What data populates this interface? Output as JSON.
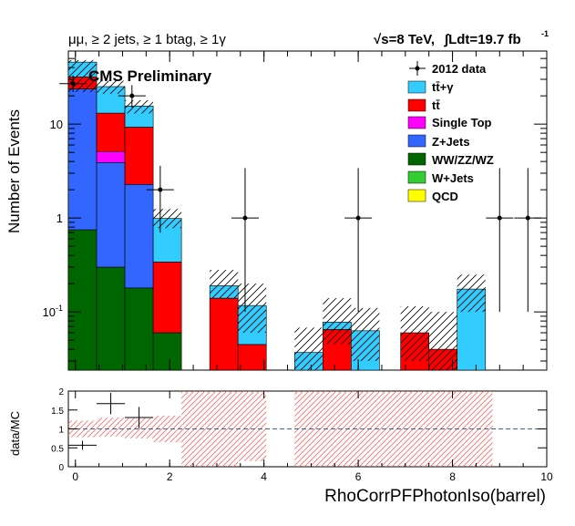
{
  "header": {
    "selection": "μμ, ≥ 2 jets, ≥ 1 btag, ≥ 1γ",
    "energy": "√s=8 TeV,",
    "lumi": "∫Ldt=19.7 fb",
    "lumi_exp": "-1",
    "label": "CMS Preliminary"
  },
  "colors": {
    "ttgamma": "#33ccff",
    "ttbar": "#ff0000",
    "singletop": "#ff00ff",
    "zjets": "#3366ff",
    "diboson": "#006600",
    "wjets": "#33cc33",
    "qcd": "#ffff00",
    "ratio_band": "#ff6666"
  },
  "chart_data": [
    {
      "type": "bar",
      "stacked": true,
      "ylabel": "Number of Events",
      "log_y": true,
      "ylim": [
        0.024,
        60
      ],
      "xlim": [
        -0.15,
        10
      ],
      "bin_width": 0.6,
      "x_ticks": [
        0,
        2,
        4,
        6,
        8,
        10
      ],
      "y_ticks": [
        {
          "value": 0.1,
          "base": "10",
          "exp": "-1"
        },
        {
          "value": 1,
          "label": "1"
        },
        {
          "value": 10,
          "label": "10"
        }
      ],
      "legend_position": "top-right",
      "legend": [
        "2012 data",
        "tt̄+γ",
        "tt̄",
        "Single Top",
        "Z+Jets",
        "WW/ZZ/WZ",
        "W+Jets",
        "QCD"
      ],
      "bins": [
        {
          "x0": -0.15,
          "values": {
            "diboson": 0.75,
            "zjets": 23,
            "ttbar": 8,
            "ttgamma": 14
          },
          "unc": [
            22,
            48
          ]
        },
        {
          "x0": 0.45,
          "values": {
            "diboson": 0.3,
            "zjets": 3.6,
            "singletop": 1.2,
            "ttbar": 8,
            "ttgamma": 12
          },
          "unc": [
            21,
            29
          ]
        },
        {
          "x0": 1.05,
          "values": {
            "diboson": 0.18,
            "zjets": 2.1,
            "ttbar": 7,
            "ttgamma": 6.3
          },
          "unc": [
            13,
            18
          ]
        },
        {
          "x0": 1.65,
          "values": {
            "diboson": 0.06,
            "ttbar": 0.28,
            "ttgamma": 0.65
          },
          "unc": [
            0.78,
            1.25
          ]
        },
        {
          "x0": 2.85,
          "values": {
            "ttbar": 0.14,
            "ttgamma": 0.05
          },
          "unc": [
            0.14,
            0.28
          ]
        },
        {
          "x0": 3.45,
          "values": {
            "ttbar": 0.045,
            "ttgamma": 0.072
          },
          "unc": [
            0.06,
            0.2
          ]
        },
        {
          "x0": 4.65,
          "values": {
            "ttgamma": 0.037
          },
          "unc": [
            0.024,
            0.068
          ]
        },
        {
          "x0": 5.25,
          "values": {
            "ttbar": 0.065,
            "ttgamma": 0.013
          },
          "unc": [
            0.045,
            0.14
          ]
        },
        {
          "x0": 5.85,
          "values": {
            "ttgamma": 0.063
          },
          "unc": [
            0.03,
            0.11
          ]
        },
        {
          "x0": 6.9,
          "values": {
            "ttbar": 0.06
          },
          "unc": [
            0.03,
            0.115
          ]
        },
        {
          "x0": 7.5,
          "values": {
            "ttbar": 0.04
          },
          "unc": [
            0.024,
            0.1
          ]
        },
        {
          "x0": 8.1,
          "values": {
            "ttgamma": 0.175
          },
          "unc": [
            0.1,
            0.25
          ]
        }
      ],
      "data_points": [
        {
          "x": -0.05,
          "y": 27,
          "ey_lo": 5,
          "ey_hi": 6
        },
        {
          "x": 0.15,
          "y": 0,
          "ey_lo": 0,
          "ey_hi": 0
        },
        {
          "x": 1.2,
          "y": 20,
          "ey_lo": 5,
          "ey_hi": 6
        },
        {
          "x": 1.8,
          "y": 2,
          "ey_lo": 1.3,
          "ey_hi": 1.6
        },
        {
          "x": 3.6,
          "y": 1,
          "ey_lo": 0.9,
          "ey_hi": 2.4
        },
        {
          "x": 6.0,
          "y": 1,
          "ey_lo": 0.9,
          "ey_hi": 2.4
        },
        {
          "x": 9.0,
          "y": 1,
          "ey_lo": 0.9,
          "ey_hi": 2.4
        },
        {
          "x": 9.6,
          "y": 1,
          "ey_lo": 0.9,
          "ey_hi": 2.4
        }
      ]
    },
    {
      "type": "scatter",
      "ylabel": "data/MC",
      "xlabel": "RhoCorrPFPhotonIso(barrel)",
      "xlim": [
        -0.15,
        10
      ],
      "ylim": [
        0,
        2
      ],
      "x_ticks": [
        0,
        2,
        4,
        6,
        8,
        10
      ],
      "y_ticks": [
        0,
        0.5,
        1,
        1.5,
        2
      ],
      "reference_line": 1,
      "points": [
        {
          "x": 0.15,
          "y": 0.57,
          "xerr": 0.3,
          "ey": 0.12
        },
        {
          "x": 0.75,
          "y": 1.67,
          "xerr": 0.3,
          "ey": 0.28
        },
        {
          "x": 1.35,
          "y": 1.3,
          "xerr": 0.3,
          "ey": 0.28
        }
      ],
      "band": [
        {
          "x0": -0.15,
          "x1": 0.45,
          "lo": 0.78,
          "hi": 1.22
        },
        {
          "x0": 0.45,
          "x1": 1.05,
          "lo": 0.8,
          "hi": 1.3
        },
        {
          "x0": 1.05,
          "x1": 1.65,
          "lo": 0.75,
          "hi": 1.28
        },
        {
          "x0": 1.65,
          "x1": 2.25,
          "lo": 0.65,
          "hi": 1.35
        },
        {
          "x0": 2.25,
          "x1": 3.45,
          "lo": 0,
          "hi": 2
        },
        {
          "x0": 3.45,
          "x1": 4.05,
          "lo": 0.15,
          "hi": 2
        },
        {
          "x0": 4.65,
          "x1": 8.85,
          "lo": 0,
          "hi": 2
        }
      ]
    }
  ]
}
